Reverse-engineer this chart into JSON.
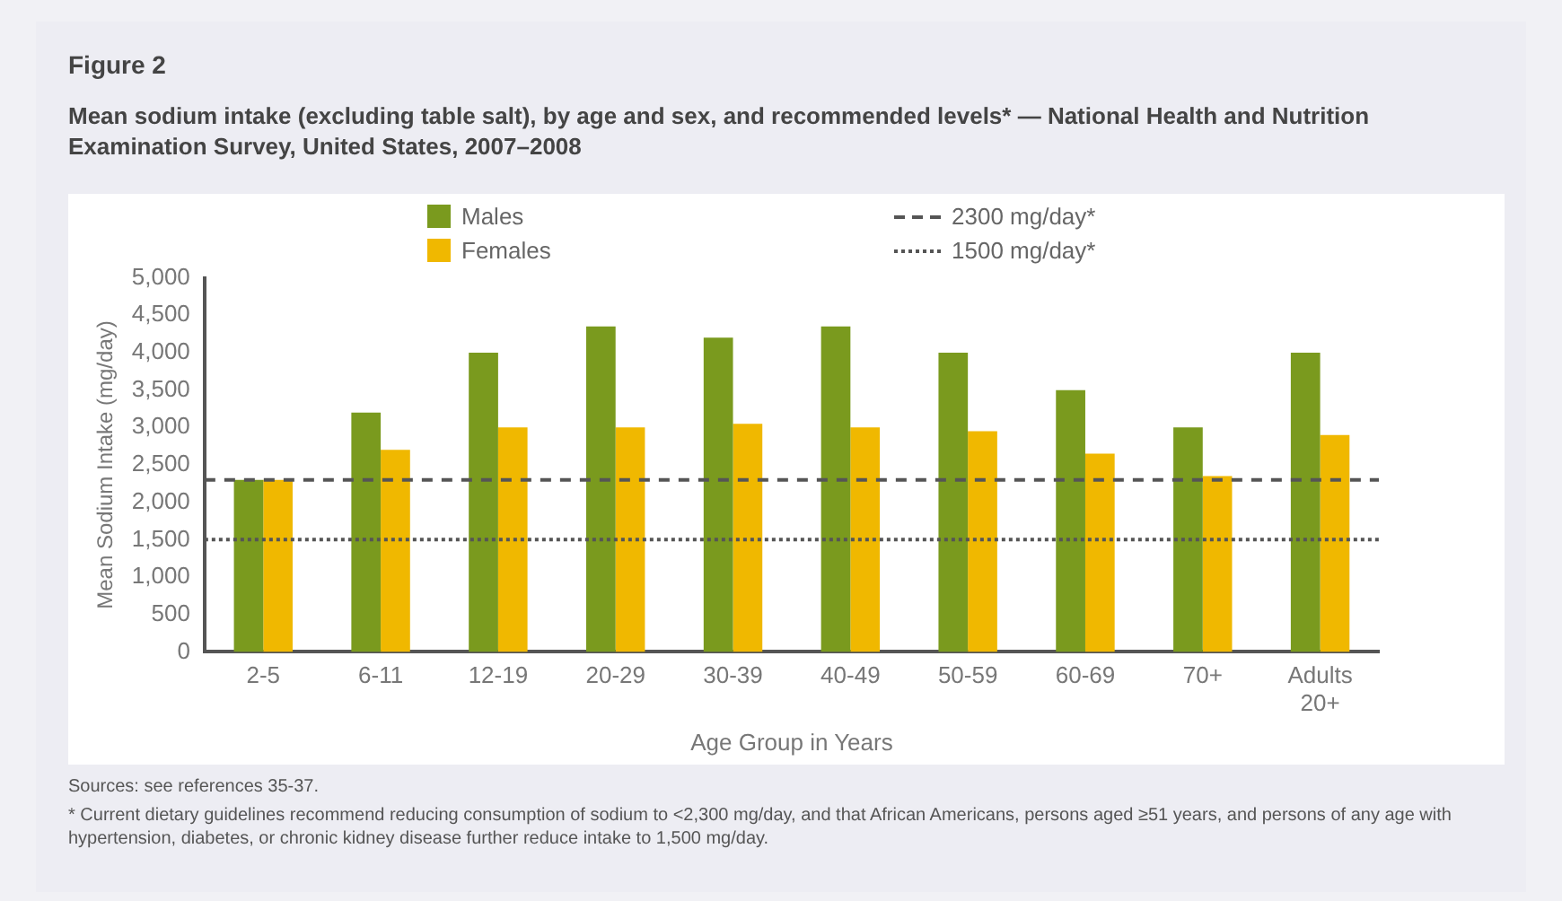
{
  "chart_data": {
    "type": "bar",
    "title": "Figure 2",
    "subtitle": "Mean sodium intake (excluding table salt), by age and sex, and recommended levels* — National Health and Nutrition Examination Survey, United States, 2007–2008",
    "xlabel": "Age Group in Years",
    "ylabel": "Mean Sodium Intake (mg/day)",
    "categories": [
      "2-5",
      "6-11",
      "12-19",
      "20-29",
      "30-39",
      "40-49",
      "50-59",
      "60-69",
      "70+",
      "Adults 20+"
    ],
    "series": [
      {
        "name": "Males",
        "color": "#7a9a1e",
        "values": [
          2300,
          3200,
          4000,
          4350,
          4200,
          4350,
          4000,
          3500,
          3000,
          4000
        ]
      },
      {
        "name": "Females",
        "color": "#f0b800",
        "values": [
          2300,
          2700,
          3000,
          3000,
          3050,
          3000,
          2950,
          2650,
          2350,
          2900
        ]
      }
    ],
    "ylim": [
      0,
      5000
    ],
    "yticks": [
      {
        "value": 0,
        "label": "0"
      },
      {
        "value": 500,
        "label": "500"
      },
      {
        "value": 1000,
        "label": "1,000"
      },
      {
        "value": 1500,
        "label": "1,500"
      },
      {
        "value": 2000,
        "label": "2,000"
      },
      {
        "value": 2500,
        "label": "2,500"
      },
      {
        "value": 3000,
        "label": "3,000"
      },
      {
        "value": 3500,
        "label": "3,500"
      },
      {
        "value": 4000,
        "label": "4,000"
      },
      {
        "value": 4500,
        "label": "4,500"
      },
      {
        "value": 5000,
        "label": "5,000"
      }
    ],
    "grid": false,
    "legend": "top",
    "ref_lines": [
      {
        "axis": "y",
        "value": 2300,
        "label": "2300 mg/day*",
        "color": "#555555",
        "line_style": "dashed"
      },
      {
        "axis": "y",
        "value": 1500,
        "label": "1500 mg/day*",
        "color": "#555555",
        "line_style": "dotted"
      }
    ],
    "annotations": [
      "Sources: see references 35-37.",
      "* Current dietary guidelines recommend reducing consumption of sodium to <2,300 mg/day, and that African Americans, persons aged ≥51 years, and persons of any age with hypertension, diabetes, or chronic kidney disease further reduce intake to 1,500 mg/day."
    ]
  }
}
